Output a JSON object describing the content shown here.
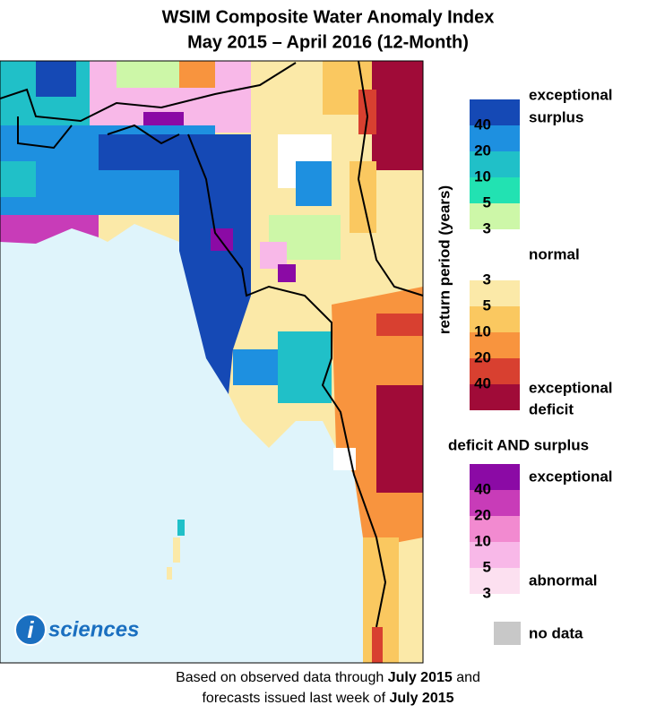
{
  "header": {
    "title": "WSIM Composite Water Anomaly Index",
    "subtitle": "May 2015 – April 2016 (12-Month)"
  },
  "logo": {
    "mark": "i",
    "text": "sciences"
  },
  "legend": {
    "axis_label": "return period (years)",
    "surplus": {
      "label_lines": [
        "exceptional",
        "surplus"
      ],
      "colors": [
        "#1549b5",
        "#1e90e0",
        "#20c0c8",
        "#22e2b2",
        "#cdf7a8"
      ],
      "ticks": [
        40,
        20,
        10,
        5,
        3
      ]
    },
    "normal": {
      "label": "normal",
      "color": "#ffffff"
    },
    "deficit": {
      "label_lines": [
        "exceptional",
        "deficit"
      ],
      "colors": [
        "#fbe9a8",
        "#fac860",
        "#f8943e",
        "#d84030",
        "#a00b38"
      ],
      "ticks": [
        3,
        5,
        10,
        20,
        40
      ]
    },
    "combined": {
      "title": "deficit AND surplus",
      "top_label": "exceptional",
      "bottom_label": "abnormal",
      "colors": [
        "#8b0aa5",
        "#c83cb8",
        "#f28ad0",
        "#f8b8e8",
        "#fce0f0"
      ],
      "ticks": [
        40,
        20,
        10,
        5,
        3
      ]
    },
    "no_data": {
      "label": "no data",
      "color": "#c8c8c8"
    }
  },
  "caption": {
    "line1_start": "Based on observed data through",
    "line1_bold": "July 2015",
    "line1_end": "and",
    "line2_start": "forecasts issued last week of",
    "line2_bold": "July 2015"
  }
}
